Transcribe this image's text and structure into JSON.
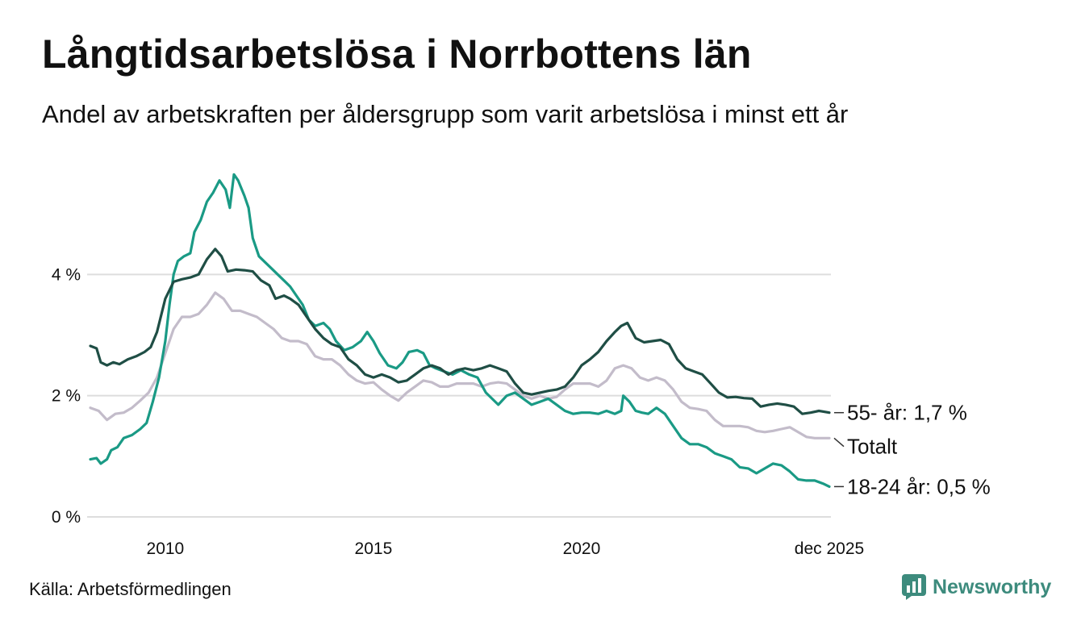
{
  "header": {
    "title": "Långtidsarbetslösa i Norrbottens län",
    "subtitle": "Andel av arbetskraften per åldersgrupp som varit arbetslösa i minst ett år"
  },
  "footer": {
    "source": "Källa: Arbetsförmedlingen",
    "brand": "Newsworthy"
  },
  "colors": {
    "age55": "#1f4e45",
    "total": "#c3bcca",
    "age1824": "#1a9a85",
    "grid": "#dddddd",
    "brand": "#3d8b7d"
  },
  "chart_data": {
    "type": "line",
    "title": "Långtidsarbetslösa i Norrbottens län",
    "subtitle": "Andel av arbetskraften per åldersgrupp som varit arbetslösa i minst ett år",
    "xlabel": "",
    "ylabel": "",
    "xlim": [
      2008.2,
      2025.95
    ],
    "ylim": [
      0,
      6
    ],
    "yticks": [
      {
        "value": 0,
        "label": "0 %"
      },
      {
        "value": 2,
        "label": "2 %"
      },
      {
        "value": 4,
        "label": "4 %"
      }
    ],
    "xticks": [
      {
        "value": 2010,
        "label": "2010"
      },
      {
        "value": 2015,
        "label": "2015"
      },
      {
        "value": 2020,
        "label": "2020"
      },
      {
        "value": 2025.95,
        "label": "dec 2025"
      }
    ],
    "grid": true,
    "series": [
      {
        "key": "age55",
        "name": "55- år",
        "end_label": "55- år: 1,7 %",
        "points": [
          [
            2008.2,
            2.82
          ],
          [
            2008.35,
            2.78
          ],
          [
            2008.45,
            2.55
          ],
          [
            2008.6,
            2.5
          ],
          [
            2008.75,
            2.55
          ],
          [
            2008.9,
            2.52
          ],
          [
            2009.1,
            2.6
          ],
          [
            2009.3,
            2.65
          ],
          [
            2009.5,
            2.72
          ],
          [
            2009.65,
            2.8
          ],
          [
            2009.8,
            3.05
          ],
          [
            2010.0,
            3.6
          ],
          [
            2010.2,
            3.88
          ],
          [
            2010.4,
            3.92
          ],
          [
            2010.6,
            3.95
          ],
          [
            2010.8,
            4.0
          ],
          [
            2011.0,
            4.25
          ],
          [
            2011.2,
            4.42
          ],
          [
            2011.35,
            4.3
          ],
          [
            2011.5,
            4.05
          ],
          [
            2011.7,
            4.08
          ],
          [
            2011.9,
            4.07
          ],
          [
            2012.1,
            4.05
          ],
          [
            2012.3,
            3.9
          ],
          [
            2012.5,
            3.82
          ],
          [
            2012.65,
            3.6
          ],
          [
            2012.85,
            3.65
          ],
          [
            2013.0,
            3.6
          ],
          [
            2013.2,
            3.5
          ],
          [
            2013.4,
            3.3
          ],
          [
            2013.6,
            3.1
          ],
          [
            2013.8,
            2.95
          ],
          [
            2014.0,
            2.85
          ],
          [
            2014.2,
            2.8
          ],
          [
            2014.4,
            2.6
          ],
          [
            2014.6,
            2.5
          ],
          [
            2014.8,
            2.35
          ],
          [
            2015.0,
            2.3
          ],
          [
            2015.2,
            2.35
          ],
          [
            2015.4,
            2.3
          ],
          [
            2015.6,
            2.22
          ],
          [
            2015.8,
            2.25
          ],
          [
            2016.0,
            2.35
          ],
          [
            2016.2,
            2.45
          ],
          [
            2016.4,
            2.5
          ],
          [
            2016.6,
            2.45
          ],
          [
            2016.8,
            2.35
          ],
          [
            2017.0,
            2.42
          ],
          [
            2017.2,
            2.45
          ],
          [
            2017.4,
            2.42
          ],
          [
            2017.6,
            2.45
          ],
          [
            2017.8,
            2.5
          ],
          [
            2018.0,
            2.45
          ],
          [
            2018.2,
            2.4
          ],
          [
            2018.4,
            2.2
          ],
          [
            2018.6,
            2.05
          ],
          [
            2018.8,
            2.02
          ],
          [
            2019.0,
            2.05
          ],
          [
            2019.2,
            2.08
          ],
          [
            2019.4,
            2.1
          ],
          [
            2019.6,
            2.15
          ],
          [
            2019.8,
            2.3
          ],
          [
            2020.0,
            2.5
          ],
          [
            2020.2,
            2.6
          ],
          [
            2020.4,
            2.72
          ],
          [
            2020.6,
            2.9
          ],
          [
            2020.8,
            3.05
          ],
          [
            2020.95,
            3.15
          ],
          [
            2021.1,
            3.2
          ],
          [
            2021.3,
            2.95
          ],
          [
            2021.5,
            2.88
          ],
          [
            2021.7,
            2.9
          ],
          [
            2021.9,
            2.92
          ],
          [
            2022.1,
            2.85
          ],
          [
            2022.3,
            2.6
          ],
          [
            2022.5,
            2.45
          ],
          [
            2022.7,
            2.4
          ],
          [
            2022.9,
            2.35
          ],
          [
            2023.1,
            2.2
          ],
          [
            2023.3,
            2.05
          ],
          [
            2023.5,
            1.97
          ],
          [
            2023.7,
            1.98
          ],
          [
            2023.9,
            1.96
          ],
          [
            2024.1,
            1.95
          ],
          [
            2024.3,
            1.82
          ],
          [
            2024.5,
            1.85
          ],
          [
            2024.7,
            1.87
          ],
          [
            2024.9,
            1.85
          ],
          [
            2025.1,
            1.82
          ],
          [
            2025.3,
            1.7
          ],
          [
            2025.5,
            1.72
          ],
          [
            2025.7,
            1.75
          ],
          [
            2025.95,
            1.72
          ]
        ]
      },
      {
        "key": "total",
        "name": "Totalt",
        "end_label": "Totalt",
        "points": [
          [
            2008.2,
            1.8
          ],
          [
            2008.4,
            1.75
          ],
          [
            2008.6,
            1.6
          ],
          [
            2008.8,
            1.7
          ],
          [
            2009.0,
            1.72
          ],
          [
            2009.2,
            1.8
          ],
          [
            2009.4,
            1.92
          ],
          [
            2009.6,
            2.05
          ],
          [
            2009.8,
            2.3
          ],
          [
            2010.0,
            2.7
          ],
          [
            2010.2,
            3.1
          ],
          [
            2010.4,
            3.3
          ],
          [
            2010.6,
            3.3
          ],
          [
            2010.8,
            3.35
          ],
          [
            2011.0,
            3.5
          ],
          [
            2011.2,
            3.7
          ],
          [
            2011.4,
            3.6
          ],
          [
            2011.6,
            3.4
          ],
          [
            2011.8,
            3.4
          ],
          [
            2012.0,
            3.35
          ],
          [
            2012.2,
            3.3
          ],
          [
            2012.4,
            3.2
          ],
          [
            2012.6,
            3.1
          ],
          [
            2012.8,
            2.95
          ],
          [
            2013.0,
            2.9
          ],
          [
            2013.2,
            2.9
          ],
          [
            2013.4,
            2.85
          ],
          [
            2013.6,
            2.65
          ],
          [
            2013.8,
            2.6
          ],
          [
            2014.0,
            2.6
          ],
          [
            2014.2,
            2.5
          ],
          [
            2014.4,
            2.35
          ],
          [
            2014.6,
            2.25
          ],
          [
            2014.8,
            2.2
          ],
          [
            2015.0,
            2.22
          ],
          [
            2015.2,
            2.1
          ],
          [
            2015.4,
            2.0
          ],
          [
            2015.6,
            1.92
          ],
          [
            2015.8,
            2.05
          ],
          [
            2016.0,
            2.15
          ],
          [
            2016.2,
            2.25
          ],
          [
            2016.4,
            2.22
          ],
          [
            2016.6,
            2.15
          ],
          [
            2016.8,
            2.15
          ],
          [
            2017.0,
            2.2
          ],
          [
            2017.2,
            2.2
          ],
          [
            2017.4,
            2.2
          ],
          [
            2017.6,
            2.15
          ],
          [
            2017.8,
            2.2
          ],
          [
            2018.0,
            2.22
          ],
          [
            2018.2,
            2.2
          ],
          [
            2018.4,
            2.1
          ],
          [
            2018.6,
            2.0
          ],
          [
            2018.8,
            1.95
          ],
          [
            2019.0,
            2.0
          ],
          [
            2019.2,
            1.95
          ],
          [
            2019.4,
            1.98
          ],
          [
            2019.6,
            2.1
          ],
          [
            2019.8,
            2.2
          ],
          [
            2020.0,
            2.2
          ],
          [
            2020.2,
            2.2
          ],
          [
            2020.4,
            2.15
          ],
          [
            2020.6,
            2.25
          ],
          [
            2020.8,
            2.45
          ],
          [
            2021.0,
            2.5
          ],
          [
            2021.2,
            2.45
          ],
          [
            2021.4,
            2.3
          ],
          [
            2021.6,
            2.25
          ],
          [
            2021.8,
            2.3
          ],
          [
            2022.0,
            2.25
          ],
          [
            2022.2,
            2.1
          ],
          [
            2022.4,
            1.9
          ],
          [
            2022.6,
            1.8
          ],
          [
            2022.8,
            1.78
          ],
          [
            2023.0,
            1.75
          ],
          [
            2023.2,
            1.6
          ],
          [
            2023.4,
            1.5
          ],
          [
            2023.6,
            1.5
          ],
          [
            2023.8,
            1.5
          ],
          [
            2024.0,
            1.48
          ],
          [
            2024.2,
            1.42
          ],
          [
            2024.4,
            1.4
          ],
          [
            2024.6,
            1.42
          ],
          [
            2024.8,
            1.45
          ],
          [
            2025.0,
            1.48
          ],
          [
            2025.2,
            1.4
          ],
          [
            2025.4,
            1.32
          ],
          [
            2025.6,
            1.3
          ],
          [
            2025.95,
            1.3
          ]
        ]
      },
      {
        "key": "age1824",
        "name": "18-24 år",
        "end_label": "18-24 år: 0,5 %",
        "points": [
          [
            2008.2,
            0.95
          ],
          [
            2008.35,
            0.97
          ],
          [
            2008.45,
            0.88
          ],
          [
            2008.6,
            0.95
          ],
          [
            2008.7,
            1.1
          ],
          [
            2008.85,
            1.15
          ],
          [
            2009.0,
            1.3
          ],
          [
            2009.2,
            1.35
          ],
          [
            2009.4,
            1.45
          ],
          [
            2009.55,
            1.55
          ],
          [
            2009.7,
            1.9
          ],
          [
            2009.85,
            2.3
          ],
          [
            2010.0,
            2.9
          ],
          [
            2010.1,
            3.5
          ],
          [
            2010.2,
            4.0
          ],
          [
            2010.3,
            4.22
          ],
          [
            2010.45,
            4.3
          ],
          [
            2010.6,
            4.35
          ],
          [
            2010.7,
            4.7
          ],
          [
            2010.85,
            4.9
          ],
          [
            2011.0,
            5.2
          ],
          [
            2011.15,
            5.35
          ],
          [
            2011.3,
            5.55
          ],
          [
            2011.45,
            5.4
          ],
          [
            2011.55,
            5.1
          ],
          [
            2011.65,
            5.65
          ],
          [
            2011.75,
            5.55
          ],
          [
            2011.9,
            5.3
          ],
          [
            2012.0,
            5.1
          ],
          [
            2012.1,
            4.6
          ],
          [
            2012.25,
            4.3
          ],
          [
            2012.4,
            4.2
          ],
          [
            2012.55,
            4.1
          ],
          [
            2012.7,
            4.0
          ],
          [
            2012.85,
            3.9
          ],
          [
            2013.0,
            3.8
          ],
          [
            2013.15,
            3.65
          ],
          [
            2013.3,
            3.5
          ],
          [
            2013.45,
            3.25
          ],
          [
            2013.6,
            3.15
          ],
          [
            2013.8,
            3.2
          ],
          [
            2013.95,
            3.1
          ],
          [
            2014.1,
            2.9
          ],
          [
            2014.3,
            2.75
          ],
          [
            2014.5,
            2.8
          ],
          [
            2014.7,
            2.9
          ],
          [
            2014.85,
            3.05
          ],
          [
            2015.0,
            2.9
          ],
          [
            2015.15,
            2.7
          ],
          [
            2015.35,
            2.5
          ],
          [
            2015.55,
            2.45
          ],
          [
            2015.7,
            2.55
          ],
          [
            2015.85,
            2.72
          ],
          [
            2016.05,
            2.75
          ],
          [
            2016.2,
            2.7
          ],
          [
            2016.35,
            2.5
          ],
          [
            2016.5,
            2.45
          ],
          [
            2016.7,
            2.4
          ],
          [
            2016.9,
            2.35
          ],
          [
            2017.1,
            2.42
          ],
          [
            2017.3,
            2.35
          ],
          [
            2017.5,
            2.3
          ],
          [
            2017.7,
            2.05
          ],
          [
            2017.85,
            1.95
          ],
          [
            2018.0,
            1.85
          ],
          [
            2018.2,
            2.0
          ],
          [
            2018.4,
            2.05
          ],
          [
            2018.6,
            1.95
          ],
          [
            2018.8,
            1.85
          ],
          [
            2019.0,
            1.9
          ],
          [
            2019.2,
            1.95
          ],
          [
            2019.4,
            1.85
          ],
          [
            2019.6,
            1.75
          ],
          [
            2019.8,
            1.7
          ],
          [
            2020.0,
            1.72
          ],
          [
            2020.2,
            1.72
          ],
          [
            2020.4,
            1.7
          ],
          [
            2020.6,
            1.75
          ],
          [
            2020.8,
            1.7
          ],
          [
            2020.95,
            1.75
          ],
          [
            2021.0,
            2.0
          ],
          [
            2021.15,
            1.9
          ],
          [
            2021.3,
            1.75
          ],
          [
            2021.45,
            1.72
          ],
          [
            2021.6,
            1.7
          ],
          [
            2021.8,
            1.8
          ],
          [
            2022.0,
            1.7
          ],
          [
            2022.2,
            1.5
          ],
          [
            2022.4,
            1.3
          ],
          [
            2022.6,
            1.2
          ],
          [
            2022.8,
            1.2
          ],
          [
            2023.0,
            1.15
          ],
          [
            2023.2,
            1.05
          ],
          [
            2023.4,
            1.0
          ],
          [
            2023.6,
            0.95
          ],
          [
            2023.8,
            0.82
          ],
          [
            2024.0,
            0.8
          ],
          [
            2024.2,
            0.72
          ],
          [
            2024.4,
            0.8
          ],
          [
            2024.6,
            0.88
          ],
          [
            2024.8,
            0.85
          ],
          [
            2025.0,
            0.75
          ],
          [
            2025.2,
            0.62
          ],
          [
            2025.4,
            0.6
          ],
          [
            2025.6,
            0.6
          ],
          [
            2025.8,
            0.55
          ],
          [
            2025.95,
            0.5
          ]
        ]
      }
    ]
  }
}
